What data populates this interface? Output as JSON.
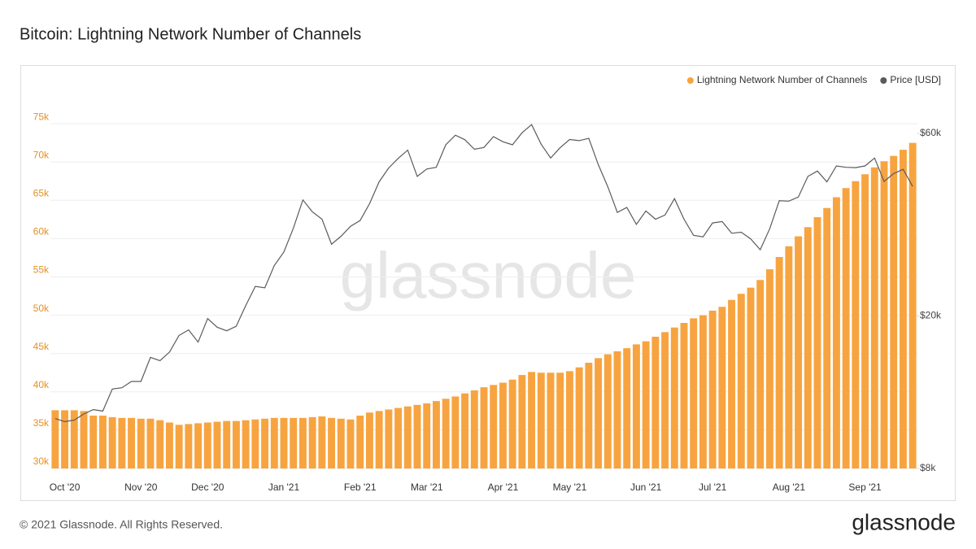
{
  "chart_data": {
    "type": "bar_line",
    "title": "Bitcoin: Lightning Network Number of Channels",
    "categories": [
      null,
      "Oct '20",
      null,
      null,
      null,
      null,
      null,
      null,
      null,
      "Nov '20",
      null,
      null,
      null,
      null,
      null,
      null,
      "Dec '20",
      null,
      null,
      null,
      null,
      null,
      null,
      null,
      "Jan '21",
      null,
      null,
      null,
      null,
      null,
      null,
      null,
      "Feb '21",
      null,
      null,
      null,
      null,
      null,
      null,
      "Mar '21",
      null,
      null,
      null,
      null,
      null,
      null,
      null,
      "Apr '21",
      null,
      null,
      null,
      null,
      null,
      null,
      "May '21",
      null,
      null,
      null,
      null,
      null,
      null,
      null,
      "Jun '21",
      null,
      null,
      null,
      null,
      null,
      null,
      "Jul '21",
      null,
      null,
      null,
      null,
      null,
      null,
      null,
      "Aug '21",
      null,
      null,
      null,
      null,
      null,
      null,
      null,
      "Sep '21",
      null,
      null,
      null,
      null,
      null
    ],
    "series": [
      {
        "name": "Lightning Network Number of Channels",
        "color": "#f7a440",
        "kind": "bar",
        "axis": "y",
        "values": [
          37600,
          37600,
          37600,
          37500,
          36900,
          36900,
          36700,
          36600,
          36600,
          36500,
          36500,
          36300,
          36000,
          35700,
          35800,
          35900,
          36000,
          36100,
          36200,
          36200,
          36300,
          36400,
          36500,
          36600,
          36600,
          36600,
          36600,
          36700,
          36800,
          36600,
          36500,
          36400,
          36900,
          37300,
          37500,
          37700,
          37900,
          38100,
          38300,
          38500,
          38800,
          39100,
          39400,
          39800,
          40200,
          40600,
          40900,
          41200,
          41600,
          42200,
          42600,
          42500,
          42500,
          42500,
          42700,
          43200,
          43800,
          44400,
          44900,
          45300,
          45700,
          46200,
          46600,
          47200,
          47800,
          48400,
          49000,
          49600,
          50000,
          50600,
          51100,
          52000,
          52800,
          53600,
          54600,
          56000,
          57600,
          59000,
          60300,
          61500,
          62800,
          64000,
          65400,
          66600,
          67500,
          68400,
          69300,
          70100,
          70800,
          71600,
          72500
        ]
      },
      {
        "name": "Price [USD]",
        "color": "#5b5b5b",
        "kind": "line",
        "axis": "y2",
        "values": [
          10800,
          10600,
          10700,
          11100,
          11400,
          11300,
          12900,
          13000,
          13500,
          13500,
          15600,
          15300,
          16100,
          17800,
          18400,
          17100,
          19700,
          18700,
          18300,
          18800,
          21300,
          23900,
          23700,
          27100,
          29400,
          33900,
          40200,
          37400,
          35800,
          30800,
          32300,
          34300,
          35500,
          39300,
          44800,
          48700,
          51600,
          54200,
          46300,
          48400,
          48900,
          56000,
          59300,
          57700,
          54500,
          55100,
          58800,
          57000,
          56000,
          60200,
          63200,
          56200,
          51700,
          55000,
          57800,
          57400,
          58200,
          49700,
          43500,
          37300,
          38400,
          34700,
          37600,
          35800,
          36700,
          40500,
          35800,
          32500,
          32200,
          35000,
          35300,
          32900,
          33100,
          31800,
          29800,
          33800,
          40000,
          39900,
          40900,
          46300,
          47800,
          44800,
          49300,
          48900,
          48800,
          49300,
          51700,
          44900,
          47100,
          48300,
          43600
        ]
      }
    ],
    "ylim": [
      30000,
      80000
    ],
    "yticks": [
      {
        "value": 30000,
        "label": "30k"
      },
      {
        "value": 35000,
        "label": "35k"
      },
      {
        "value": 40000,
        "label": "40k"
      },
      {
        "value": 45000,
        "label": "45k"
      },
      {
        "value": 50000,
        "label": "50k"
      },
      {
        "value": 55000,
        "label": "55k"
      },
      {
        "value": 60000,
        "label": "60k"
      },
      {
        "value": 65000,
        "label": "65k"
      },
      {
        "value": 70000,
        "label": "70k"
      },
      {
        "value": 75000,
        "label": "75k"
      }
    ],
    "y2lim": [
      8000,
      80000
    ],
    "y2ticks": [
      {
        "value": 8000,
        "label": "$8k"
      },
      {
        "value": 20000,
        "label": "$20k"
      },
      {
        "value": 60000,
        "label": "$60k"
      }
    ],
    "y2_log": true,
    "grid": true,
    "legend": "top-right"
  },
  "watermark": "glassnode",
  "copyright": "© 2021 Glassnode. All Rights Reserved.",
  "brand": "glassnode"
}
